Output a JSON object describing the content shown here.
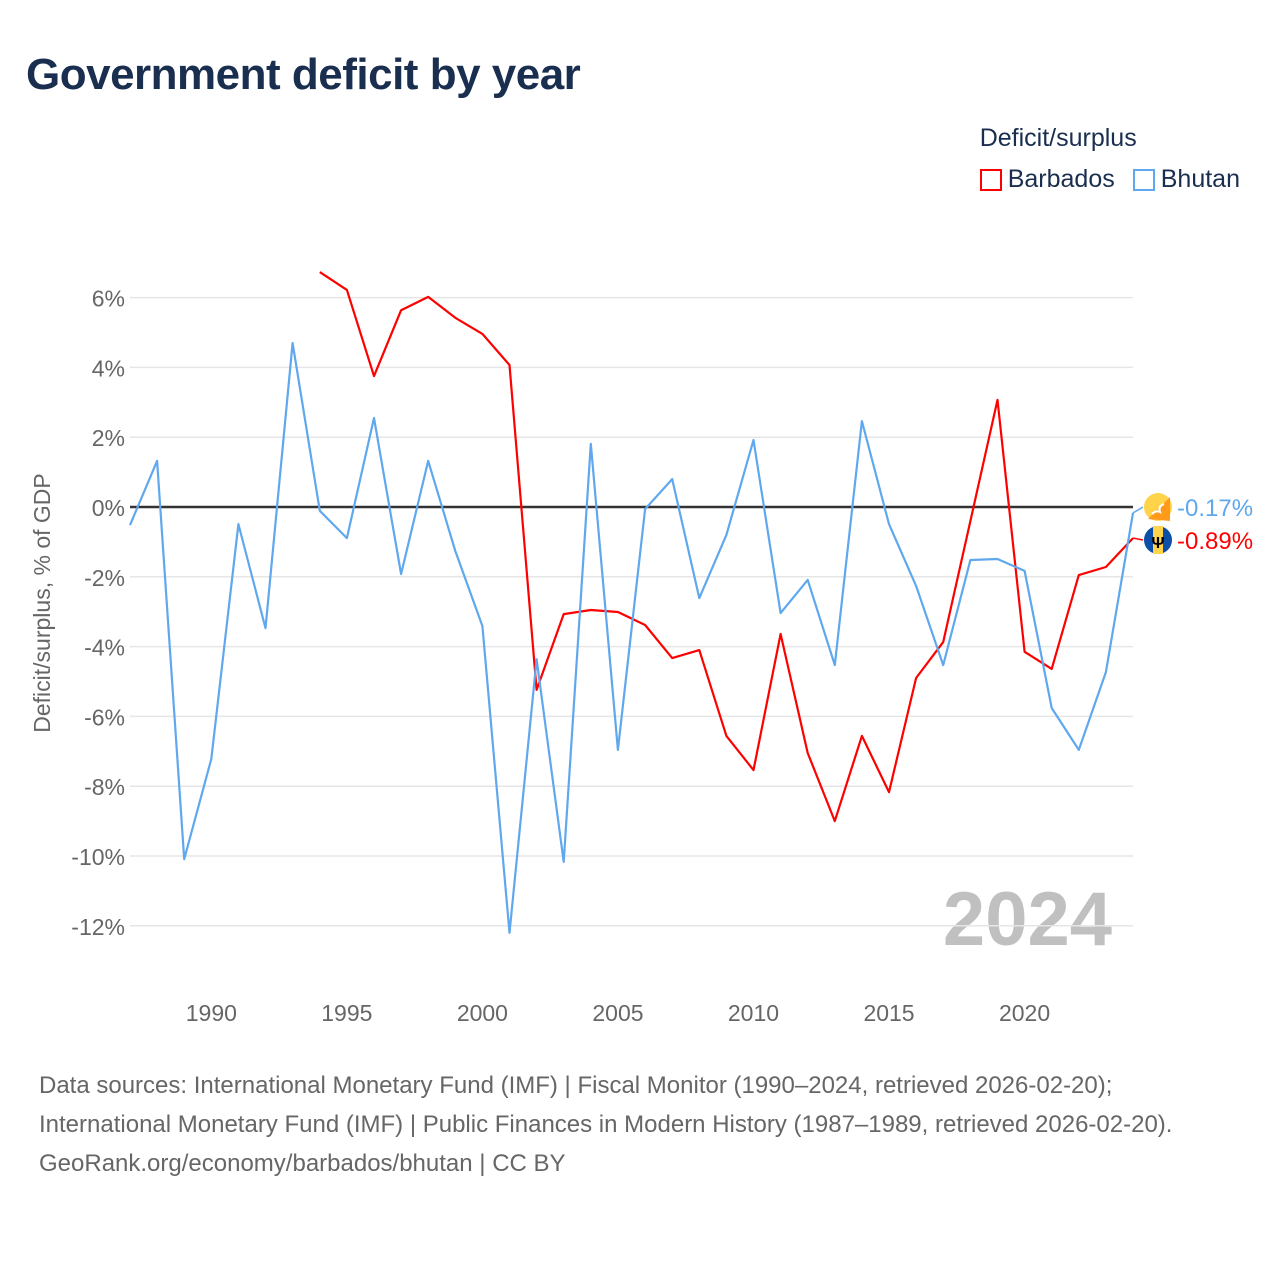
{
  "chart_data": {
    "type": "line",
    "title": "Government deficit by year",
    "ylabel": "Deficit/surplus, % of GDP",
    "xlabel": "",
    "ylim": [
      -13,
      7
    ],
    "xlim": [
      1987,
      2024
    ],
    "yticks": [
      6,
      4,
      2,
      0,
      -2,
      -4,
      -6,
      -8,
      -10,
      -12
    ],
    "ytick_labels": [
      "6%",
      "4%",
      "2%",
      "0%",
      "-2%",
      "-4%",
      "-6%",
      "-8%",
      "-10%",
      "-12%"
    ],
    "xticks": [
      1990,
      1995,
      2000,
      2005,
      2010,
      2015,
      2020
    ],
    "xtick_labels": [
      "1990",
      "1995",
      "2000",
      "2005",
      "2010",
      "2015",
      "2020"
    ],
    "grid": true,
    "legend_title": "Deficit/surplus",
    "legend_position": "top-right",
    "year_watermark": "2024",
    "series": [
      {
        "name": "Barbados",
        "color": "#ff0000",
        "end_label": "-0.89%",
        "flag_icon": "barbados-flag-icon",
        "x": [
          1994,
          1995,
          1996,
          1997,
          1998,
          1999,
          2000,
          2001,
          2002,
          2003,
          2004,
          2005,
          2006,
          2007,
          2008,
          2009,
          2010,
          2011,
          2012,
          2013,
          2014,
          2015,
          2016,
          2017,
          2018,
          2019,
          2020,
          2021,
          2022,
          2023,
          2024
        ],
        "values": [
          6.73,
          6.22,
          3.75,
          5.64,
          6.02,
          5.42,
          4.96,
          4.07,
          -5.24,
          -3.07,
          -2.95,
          -3.01,
          -3.38,
          -4.33,
          -4.1,
          -6.56,
          -7.54,
          -3.64,
          -7.05,
          -9.0,
          -6.56,
          -8.17,
          -4.9,
          -3.87,
          -0.4,
          3.07,
          -4.15,
          -4.64,
          -1.95,
          -1.72,
          -0.89
        ]
      },
      {
        "name": "Bhutan",
        "color": "#5fa8ee",
        "end_label": "-0.17%",
        "flag_icon": "bhutan-flag-icon",
        "x": [
          1987,
          1988,
          1989,
          1990,
          1991,
          1992,
          1993,
          1994,
          1995,
          1996,
          1997,
          1998,
          1999,
          2000,
          2001,
          2002,
          2003,
          2004,
          2005,
          2006,
          2007,
          2008,
          2009,
          2010,
          2011,
          2012,
          2013,
          2014,
          2015,
          2016,
          2017,
          2018,
          2019,
          2020,
          2021,
          2022,
          2023,
          2024
        ],
        "values": [
          -0.52,
          1.32,
          -10.09,
          -7.22,
          -0.49,
          -3.47,
          4.7,
          -0.11,
          -0.89,
          2.55,
          -1.92,
          1.32,
          -1.26,
          -3.41,
          -12.2,
          -4.36,
          -10.17,
          1.81,
          -6.96,
          -0.06,
          0.8,
          -2.61,
          -0.8,
          1.92,
          -3.04,
          -2.09,
          -4.53,
          2.46,
          -0.49,
          -2.26,
          -4.53,
          -1.52,
          -1.49,
          -1.83,
          -5.76,
          -6.96,
          -4.73,
          -0.17
        ]
      }
    ]
  },
  "footer": {
    "sources": "Data sources: International Monetary Fund (IMF) | Fiscal Monitor (1990–2024, retrieved 2026-02-20); International Monetary Fund (IMF) | Public Finances in Modern History (1987–1989, retrieved 2026-02-20).",
    "credit": "GeoRank.org/economy/barbados/bhutan | CC BY"
  }
}
